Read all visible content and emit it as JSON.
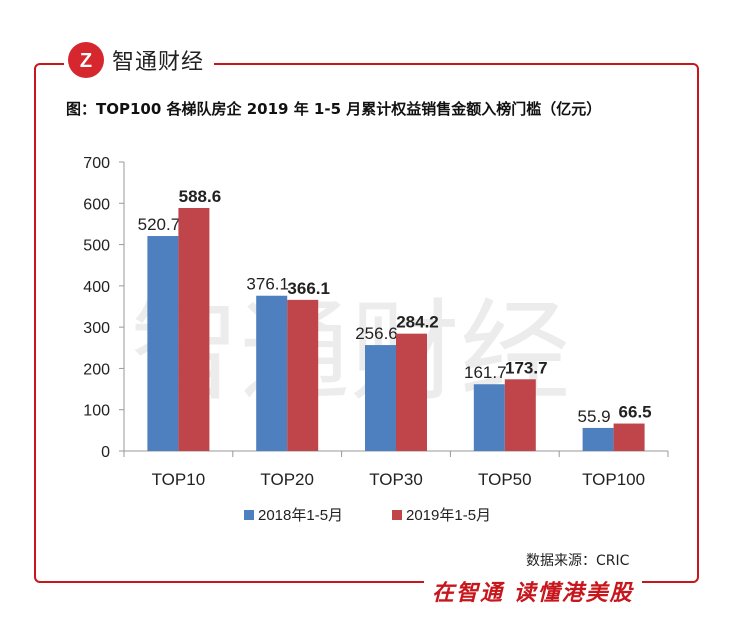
{
  "brand": {
    "logo_letter": "Z",
    "name": "智通财经"
  },
  "watermark": "智通财经",
  "chart_data": {
    "type": "bar",
    "title": "图：TOP100 各梯队房企 2019 年 1-5 月累计权益销售金额入榜门槛（亿元）",
    "categories": [
      "TOP10",
      "TOP20",
      "TOP30",
      "TOP50",
      "TOP100"
    ],
    "series": [
      {
        "name": "2018年1-5月",
        "color": "#4e7fbf",
        "values": [
          520.7,
          376.1,
          256.6,
          161.7,
          55.9
        ],
        "label_bold": false
      },
      {
        "name": "2019年1-5月",
        "color": "#c0454a",
        "values": [
          588.6,
          366.1,
          284.2,
          173.7,
          66.5
        ],
        "label_bold": true
      }
    ],
    "ylim": [
      0,
      700
    ],
    "yticks": [
      0,
      100,
      200,
      300,
      400,
      500,
      600,
      700
    ],
    "xlabel": "",
    "ylabel": "",
    "legend": "bottom"
  },
  "source": "数据来源：CRIC",
  "slogan": "在智通  读懂港美股"
}
